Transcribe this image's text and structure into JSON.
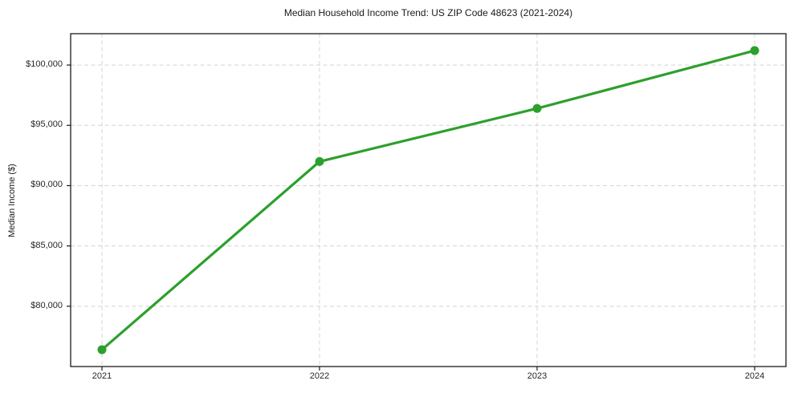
{
  "chart_data": {
    "type": "line",
    "title": "Median Household Income Trend: US ZIP Code 48623 (2021-2024)",
    "xlabel": "",
    "ylabel": "Median Income ($)",
    "categories": [
      "2021",
      "2022",
      "2023",
      "2024"
    ],
    "series": [
      {
        "name": "Median Household Income",
        "values": [
          76400,
          92000,
          96400,
          101200
        ]
      }
    ],
    "ylim": [
      75000,
      102600
    ],
    "yticks": [
      80000,
      85000,
      90000,
      95000,
      100000
    ],
    "ytick_labels": [
      "$80,000",
      "$85,000",
      "$90,000",
      "$95,000",
      "$100,000"
    ],
    "grid": true,
    "grid_style": "dashed",
    "legend_position": "none",
    "line_color": "#2ca02c",
    "marker_color": "#2ca02c",
    "grid_color": "#d4d4d4",
    "axis_color": "#1a1a1a",
    "text_color": "#262626"
  }
}
